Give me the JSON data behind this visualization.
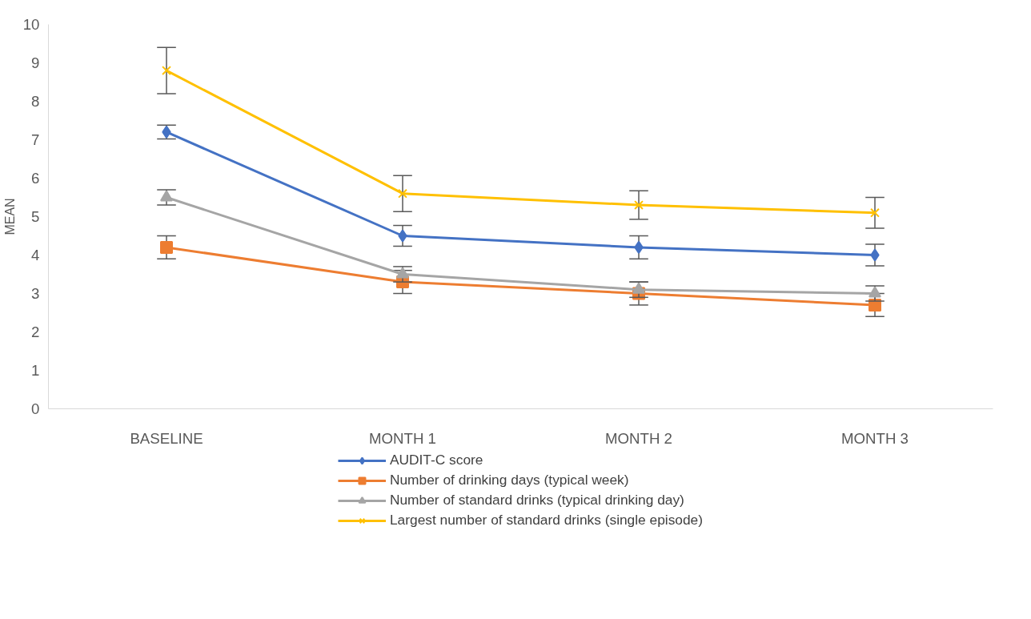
{
  "chart_data": {
    "type": "line",
    "ylabel": "MEAN",
    "categories": [
      "BASELINE",
      "MONTH 1",
      "MONTH 2",
      "MONTH 3"
    ],
    "ylim": [
      0,
      10
    ],
    "yticks": [
      0,
      1,
      2,
      3,
      4,
      5,
      6,
      7,
      8,
      9,
      10
    ],
    "grid": false,
    "legend": "bottom",
    "series": [
      {
        "name": "AUDIT-C score",
        "color": "#4472c4",
        "marker": "diamond",
        "values": [
          7.2,
          4.5,
          4.2,
          4.0
        ],
        "errors": [
          0.18,
          0.27,
          0.3,
          0.28
        ]
      },
      {
        "name": "Number of drinking days (typical week)",
        "color": "#ed7d31",
        "marker": "square",
        "values": [
          4.2,
          3.3,
          3.0,
          2.7
        ],
        "errors": [
          0.3,
          0.3,
          0.3,
          0.3
        ]
      },
      {
        "name": "Number of standard drinks (typical drinking day)",
        "color": "#a5a5a5",
        "marker": "triangle",
        "values": [
          5.5,
          3.5,
          3.1,
          3.0
        ],
        "errors": [
          0.2,
          0.2,
          0.2,
          0.2
        ]
      },
      {
        "name": "Largest number of standard drinks (single episode)",
        "color": "#ffc000",
        "marker": "cross",
        "values": [
          8.8,
          5.6,
          5.3,
          5.1
        ],
        "errors": [
          0.6,
          0.47,
          0.37,
          0.4
        ]
      }
    ]
  }
}
